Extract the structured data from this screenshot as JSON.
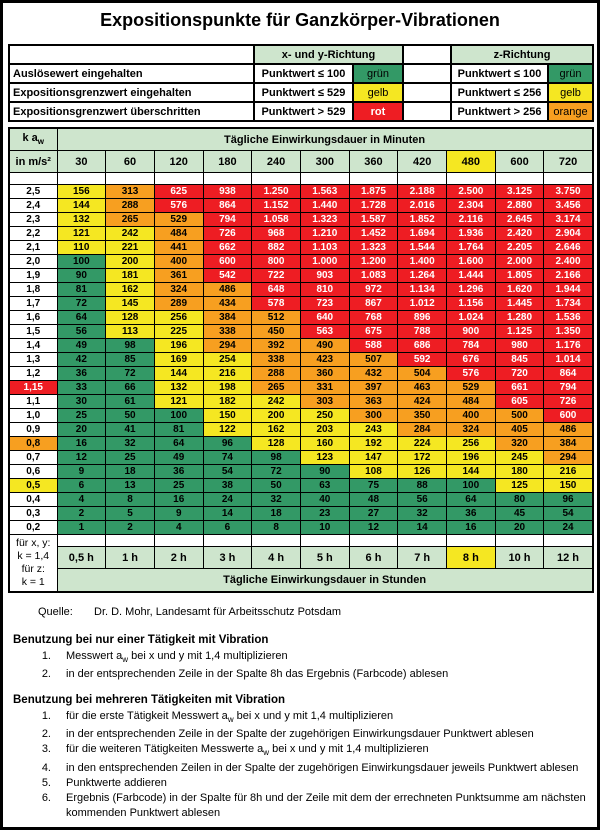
{
  "title": "Expositionspunkte für Ganzkörper-Vibrationen",
  "legend": {
    "xy_header": "x- und y-Richtung",
    "z_header": "z-Richtung",
    "rows": [
      {
        "label": "Auslösewert eingehalten",
        "xy_rule": "Punktwert ≤ 100",
        "xy_color": "grün",
        "xy_key": "green",
        "z_rule": "Punktwert ≤ 100",
        "z_color": "grün",
        "z_key": "green"
      },
      {
        "label": "Expositionsgrenzwert eingehalten",
        "xy_rule": "Punktwert ≤ 529",
        "xy_color": "gelb",
        "xy_key": "yellow",
        "z_rule": "Punktwert ≤ 256",
        "z_color": "gelb",
        "z_key": "yellow"
      },
      {
        "label": "Expositionsgrenzwert überschritten",
        "xy_rule": "Punktwert > 529",
        "xy_color": "rot",
        "xy_key": "red",
        "z_rule": "Punktwert > 256",
        "z_color": "orange",
        "z_key": "orange"
      }
    ]
  },
  "matrix": {
    "corner": {
      "pre": "k a",
      "sub": "w"
    },
    "unit": "in m/s²",
    "minutes_header": "Tägliche Einwirkungsdauer in Minuten",
    "hours_header": "Tägliche Einwirkungsdauer in Stunden",
    "minute_cols": [
      "30",
      "60",
      "120",
      "180",
      "240",
      "300",
      "360",
      "420",
      "480",
      "600",
      "720"
    ],
    "highlight_col": "480",
    "hour_cols": [
      "0,5 h",
      "1 h",
      "2 h",
      "3 h",
      "4 h",
      "5 h",
      "6 h",
      "7 h",
      "8 h",
      "10 h",
      "12 h"
    ],
    "highlight_hour": "8 h",
    "k_note": [
      "für x, y:",
      "k = 1,4",
      "für z:",
      "k = 1"
    ],
    "color_rule": [
      {
        "max": 100,
        "key": "green"
      },
      {
        "max": 256,
        "key": "yellow"
      },
      {
        "max": 529,
        "key": "orange"
      },
      {
        "max": null,
        "key": "red"
      }
    ],
    "key_col_index": 8,
    "rows": [
      {
        "aw": "2,5",
        "values": [
          "156",
          "313",
          "625",
          "938",
          "1.250",
          "1.563",
          "1.875",
          "2.188",
          "2.500",
          "3.125",
          "3.750"
        ]
      },
      {
        "aw": "2,4",
        "values": [
          "144",
          "288",
          "576",
          "864",
          "1.152",
          "1.440",
          "1.728",
          "2.016",
          "2.304",
          "2.880",
          "3.456"
        ]
      },
      {
        "aw": "2,3",
        "values": [
          "132",
          "265",
          "529",
          "794",
          "1.058",
          "1.323",
          "1.587",
          "1.852",
          "2.116",
          "2.645",
          "3.174"
        ]
      },
      {
        "aw": "2,2",
        "values": [
          "121",
          "242",
          "484",
          "726",
          "968",
          "1.210",
          "1.452",
          "1.694",
          "1.936",
          "2.420",
          "2.904"
        ]
      },
      {
        "aw": "2,1",
        "values": [
          "110",
          "221",
          "441",
          "662",
          "882",
          "1.103",
          "1.323",
          "1.544",
          "1.764",
          "2.205",
          "2.646"
        ]
      },
      {
        "aw": "2,0",
        "values": [
          "100",
          "200",
          "400",
          "600",
          "800",
          "1.000",
          "1.200",
          "1.400",
          "1.600",
          "2.000",
          "2.400"
        ]
      },
      {
        "aw": "1,9",
        "values": [
          "90",
          "181",
          "361",
          "542",
          "722",
          "903",
          "1.083",
          "1.264",
          "1.444",
          "1.805",
          "2.166"
        ]
      },
      {
        "aw": "1,8",
        "values": [
          "81",
          "162",
          "324",
          "486",
          "648",
          "810",
          "972",
          "1.134",
          "1.296",
          "1.620",
          "1.944"
        ]
      },
      {
        "aw": "1,7",
        "values": [
          "72",
          "145",
          "289",
          "434",
          "578",
          "723",
          "867",
          "1.012",
          "1.156",
          "1.445",
          "1.734"
        ]
      },
      {
        "aw": "1,6",
        "values": [
          "64",
          "128",
          "256",
          "384",
          "512",
          "640",
          "768",
          "896",
          "1.024",
          "1.280",
          "1.536"
        ]
      },
      {
        "aw": "1,5",
        "values": [
          "56",
          "113",
          "225",
          "338",
          "450",
          "563",
          "675",
          "788",
          "900",
          "1.125",
          "1.350"
        ]
      },
      {
        "aw": "1,4",
        "values": [
          "49",
          "98",
          "196",
          "294",
          "392",
          "490",
          "588",
          "686",
          "784",
          "980",
          "1.176"
        ]
      },
      {
        "aw": "1,3",
        "values": [
          "42",
          "85",
          "169",
          "254",
          "338",
          "423",
          "507",
          "592",
          "676",
          "845",
          "1.014"
        ]
      },
      {
        "aw": "1,2",
        "values": [
          "36",
          "72",
          "144",
          "216",
          "288",
          "360",
          "432",
          "504",
          "576",
          "720",
          "864"
        ]
      },
      {
        "aw": "1,15",
        "label_key": "red",
        "key_cell": true,
        "values": [
          "33",
          "66",
          "132",
          "198",
          "265",
          "331",
          "397",
          "463",
          "529",
          "661",
          "794"
        ]
      },
      {
        "aw": "1,1",
        "values": [
          "30",
          "61",
          "121",
          "182",
          "242",
          "303",
          "363",
          "424",
          "484",
          "605",
          "726"
        ]
      },
      {
        "aw": "1,0",
        "values": [
          "25",
          "50",
          "100",
          "150",
          "200",
          "250",
          "300",
          "350",
          "400",
          "500",
          "600"
        ]
      },
      {
        "aw": "0,9",
        "values": [
          "20",
          "41",
          "81",
          "122",
          "162",
          "203",
          "243",
          "284",
          "324",
          "405",
          "486"
        ]
      },
      {
        "aw": "0,8",
        "label_key": "orange",
        "key_cell": true,
        "values": [
          "16",
          "32",
          "64",
          "96",
          "128",
          "160",
          "192",
          "224",
          "256",
          "320",
          "384"
        ]
      },
      {
        "aw": "0,7",
        "values": [
          "12",
          "25",
          "49",
          "74",
          "98",
          "123",
          "147",
          "172",
          "196",
          "245",
          "294"
        ]
      },
      {
        "aw": "0,6",
        "values": [
          "9",
          "18",
          "36",
          "54",
          "72",
          "90",
          "108",
          "126",
          "144",
          "180",
          "216"
        ]
      },
      {
        "aw": "0,5",
        "label_key": "yellow",
        "key_cell": true,
        "values": [
          "6",
          "13",
          "25",
          "38",
          "50",
          "63",
          "75",
          "88",
          "100",
          "125",
          "150"
        ]
      },
      {
        "aw": "0,4",
        "values": [
          "4",
          "8",
          "16",
          "24",
          "32",
          "40",
          "48",
          "56",
          "64",
          "80",
          "96"
        ]
      },
      {
        "aw": "0,3",
        "values": [
          "2",
          "5",
          "9",
          "14",
          "18",
          "23",
          "27",
          "32",
          "36",
          "45",
          "54"
        ]
      },
      {
        "aw": "0,2",
        "values": [
          "1",
          "2",
          "4",
          "6",
          "8",
          "10",
          "12",
          "14",
          "16",
          "20",
          "24"
        ]
      }
    ]
  },
  "source": {
    "label": "Quelle:",
    "text": "Dr. D. Mohr, Landesamt für Arbeitsschutz Potsdam"
  },
  "sections": [
    {
      "heading": "Benutzung bei nur einer Tätigkeit mit Vibration",
      "items": [
        {
          "num": "1.",
          "pre": "Messwert a",
          "sub": "w",
          "post": " bei x und y mit 1,4 multiplizieren"
        },
        {
          "num": "2.",
          "pre": "in der entsprechenden Zeile in der Spalte 8h das Ergebnis (Farbcode) ablesen",
          "sub": "",
          "post": ""
        }
      ]
    },
    {
      "heading": "Benutzung bei mehreren Tätigkeiten mit Vibration",
      "items": [
        {
          "num": "1.",
          "pre": "für die erste Tätigkeit Messwert a",
          "sub": "w",
          "post": " bei x und y mit 1,4 multiplizieren"
        },
        {
          "num": "2.",
          "pre": "in der entsprechenden Zeile in der Spalte der zugehörigen Einwirkungsdauer Punktwert ablesen",
          "sub": "",
          "post": ""
        },
        {
          "num": "3.",
          "pre": "für die weiteren Tätigkeiten Messwerte a",
          "sub": "w",
          "post": " bei x und y mit 1,4 multiplizieren"
        },
        {
          "num": "4.",
          "pre": "in den entsprechenden Zeilen in der Spalte der zugehörigen Einwirkungsdauer jeweils Punktwert ablesen",
          "sub": "",
          "post": ""
        },
        {
          "num": "5.",
          "pre": "Punktwerte addieren",
          "sub": "",
          "post": ""
        },
        {
          "num": "6.",
          "pre": "Ergebnis (Farbcode) in der Spalte für 8h und der Zeile mit dem der errechneten Punktsumme am nächsten kommenden Punktwert ablesen",
          "sub": "",
          "post": ""
        }
      ]
    }
  ],
  "palette": {
    "green": "#339966",
    "yellow": "#F5E722",
    "orange": "#F79F20",
    "red": "#EE1D23",
    "header_green": "#CEE5CD",
    "grid": "#000000"
  }
}
